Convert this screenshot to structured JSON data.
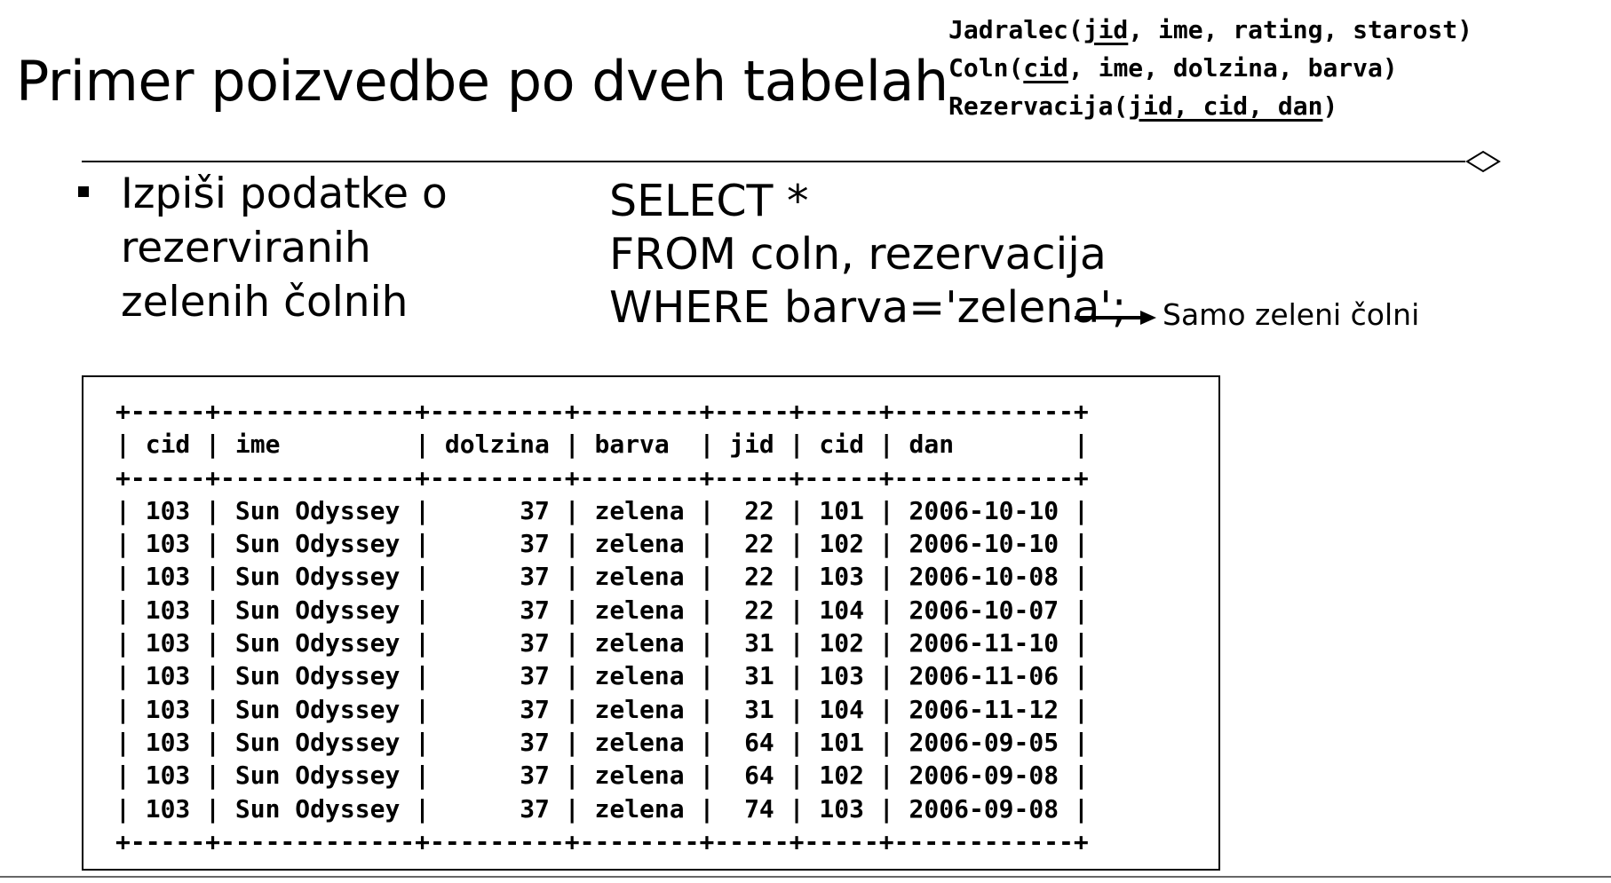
{
  "slide": {
    "title": "Primer poizvedbe po dveh tabelah"
  },
  "schema": {
    "lines": [
      {
        "name": "Jadralec",
        "open": "(",
        "key": "jid",
        "rest": ", ime, rating, starost)"
      },
      {
        "name": "Coln",
        "open": "(",
        "key": "cid",
        "rest": ", ime, dolzina, barva)"
      },
      {
        "name": "Rezervacija",
        "open": "(",
        "key": "jid, cid, dan",
        "rest": ")"
      }
    ]
  },
  "bullet": {
    "lines": [
      "Izpiši podatke o",
      "rezerviranih",
      "zelenih čolnih"
    ]
  },
  "sql": {
    "lines": [
      "SELECT *",
      "FROM coln, rezervacija",
      "WHERE barva='zelena';"
    ]
  },
  "annotation": {
    "text": "Samo zeleni čolni"
  },
  "result": {
    "columns": [
      "cid",
      "ime",
      "dolzina",
      "barva",
      "jid",
      "cid",
      "dan"
    ],
    "rows": [
      [
        "103",
        "Sun Odyssey",
        "37",
        "zelena",
        "22",
        "101",
        "2006-10-10"
      ],
      [
        "103",
        "Sun Odyssey",
        "37",
        "zelena",
        "22",
        "102",
        "2006-10-10"
      ],
      [
        "103",
        "Sun Odyssey",
        "37",
        "zelena",
        "22",
        "103",
        "2006-10-08"
      ],
      [
        "103",
        "Sun Odyssey",
        "37",
        "zelena",
        "22",
        "104",
        "2006-10-07"
      ],
      [
        "103",
        "Sun Odyssey",
        "37",
        "zelena",
        "31",
        "102",
        "2006-11-10"
      ],
      [
        "103",
        "Sun Odyssey",
        "37",
        "zelena",
        "31",
        "103",
        "2006-11-06"
      ],
      [
        "103",
        "Sun Odyssey",
        "37",
        "zelena",
        "31",
        "104",
        "2006-11-12"
      ],
      [
        "103",
        "Sun Odyssey",
        "37",
        "zelena",
        "64",
        "101",
        "2006-09-05"
      ],
      [
        "103",
        "Sun Odyssey",
        "37",
        "zelena",
        "64",
        "102",
        "2006-09-08"
      ],
      [
        "103",
        "Sun Odyssey",
        "37",
        "zelena",
        "74",
        "103",
        "2006-09-08"
      ]
    ]
  }
}
